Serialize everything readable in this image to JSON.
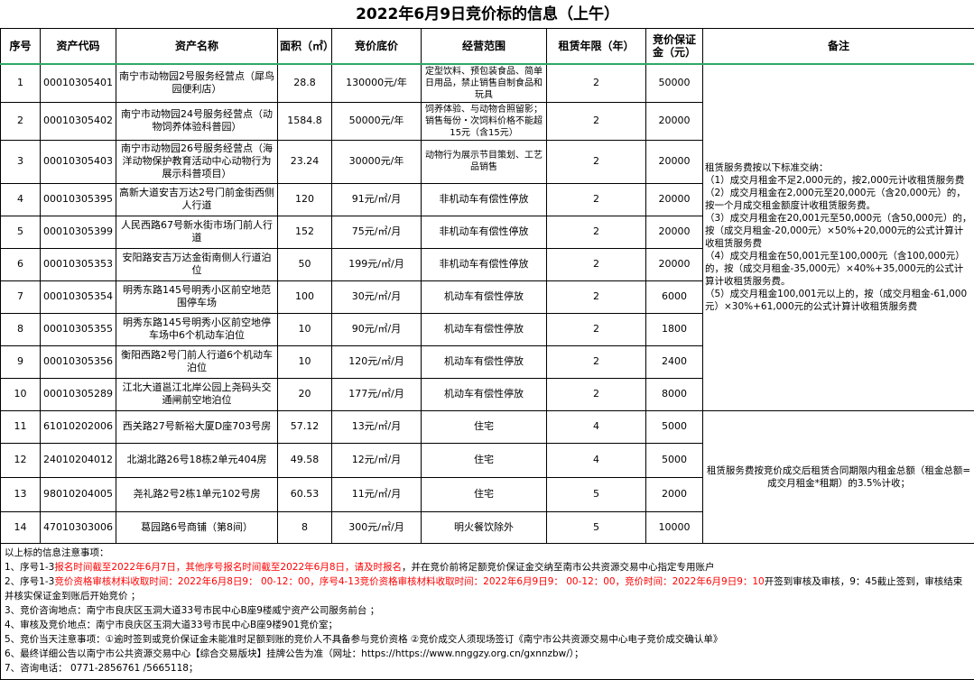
{
  "title": "2022年6月9日竞价标的信息（上午）",
  "headers": [
    "序号",
    "资产代码",
    "资产名称",
    "面积（㎡）",
    "竞价底价",
    "经营范围",
    "租赁年限（年）",
    "竞价保证金（元）",
    "备注"
  ],
  "rows": [
    {
      "no": "1",
      "code": "00010305401",
      "name": "南宁市动物园2号服务经营点（犀鸟园便利店）",
      "area": "28.8",
      "price": "130000元/年",
      "scope": "定型饮料、预包装食品、简单日用品，禁止销售自制食品和玩具",
      "years": "2",
      "deposit": "50000"
    },
    {
      "no": "2",
      "code": "00010305402",
      "name": "南宁市动物园24号服务经营点（动物饲养体验科普园）",
      "area": "1584.8",
      "price": "50000元/年",
      "scope": "饲养体验、与动物合照留影；销售每份・次饲料价格不能超15元（含15元）",
      "years": "2",
      "deposit": "20000"
    },
    {
      "no": "3",
      "code": "00010305403",
      "name": "南宁市动物园26号服务经营点（海洋动物保护教育活动中心动物行为展示科普项目）",
      "area": "23.24",
      "price": "30000元/年",
      "scope": "动物行为展示节目策划、工艺品销售",
      "years": "2",
      "deposit": "20000"
    },
    {
      "no": "4",
      "code": "00010305395",
      "name": "高新大道安吉万达2号门前金街西侧人行道",
      "area": "120",
      "price": "91元/㎡/月",
      "scope": "非机动车有偿性停放",
      "years": "2",
      "deposit": "20000"
    },
    {
      "no": "5",
      "code": "00010305399",
      "name": "人民西路67号新水街市场门前人行道",
      "area": "152",
      "price": "75元/㎡/月",
      "scope": "非机动车有偿性停放",
      "years": "2",
      "deposit": "20000"
    },
    {
      "no": "6",
      "code": "00010305353",
      "name": "安阳路安吉万达金街南侧人行道泊位",
      "area": "50",
      "price": "199元/㎡/月",
      "scope": "非机动车有偿性停放",
      "years": "2",
      "deposit": "20000"
    },
    {
      "no": "7",
      "code": "00010305354",
      "name": "明秀东路145号明秀小区前空地范围停车场",
      "area": "100",
      "price": "30元/㎡/月",
      "scope": "机动车有偿性停放",
      "years": "2",
      "deposit": "6000"
    },
    {
      "no": "8",
      "code": "00010305355",
      "name": "明秀东路145号明秀小区前空地停车场中6个机动车泊位",
      "area": "10",
      "price": "90元/㎡/月",
      "scope": "机动车有偿性停放",
      "years": "2",
      "deposit": "1800"
    },
    {
      "no": "9",
      "code": "00010305356",
      "name": "衡阳西路2号门前人行道6个机动车泊位",
      "area": "10",
      "price": "120元/㎡/月",
      "scope": "机动车有偿性停放",
      "years": "2",
      "deposit": "2400"
    },
    {
      "no": "10",
      "code": "00010305289",
      "name": "江北大道邕江北岸公园上尧码头交通闸前空地泊位",
      "area": "20",
      "price": "177元/㎡/月",
      "scope": "机动车有偿性停放",
      "years": "2",
      "deposit": "8000"
    },
    {
      "no": "11",
      "code": "61010202006",
      "name": "西关路27号新裕大厦D座703号房",
      "area": "57.12",
      "price": "13元/㎡/月",
      "scope": "住宅",
      "years": "4",
      "deposit": "5000"
    },
    {
      "no": "12",
      "code": "24010204012",
      "name": "北湖北路26号18栋2单元404房",
      "area": "49.58",
      "price": "12元/㎡/月",
      "scope": "住宅",
      "years": "4",
      "deposit": "5000"
    },
    {
      "no": "13",
      "code": "98010204005",
      "name": "尧礼路2号2栋1单元102号房",
      "area": "60.53",
      "price": "11元/㎡/月",
      "scope": "住宅",
      "years": "5",
      "deposit": "2000"
    },
    {
      "no": "14",
      "code": "47010303006",
      "name": "葛园路6号商铺（第8间）",
      "area": "8",
      "price": "300元/㎡/月",
      "scope": "明火餐饮除外",
      "years": "5",
      "deposit": "10000"
    }
  ],
  "remarks": {
    "group1": [
      "租赁服务费按以下标准交纳：",
      "（1）成交月租金不足2,000元的，按2,000元计收租赁服务费",
      "（2）成交月租金在2,000元至20,000元（含20,000元）的，按一个月成交租金额度计收租赁服务费。",
      "（3）成交月租金在20,001元至50,000元（含50,000元）的，按（成交月租金-20,000元）×50%+20,000元的公式计算计收租赁服务费",
      "（4）成交月租金在50,001元至100,000元（含100,000元）的，按（成交月租金-35,000元）×40%+35,000元的公式计算计收租赁服务费。",
      "（5）成交月租金100,001元以上的，按（成交月租金-61,000元）×30%+61,000元的公式计算计收租赁服务费"
    ],
    "group2": "租赁服务费按竞价成交后租赁合同期限内租金总额（租金总额=成交月租金*租期）的3.5%计收；"
  },
  "notes": {
    "heading": "以上标的信息注意事项：",
    "n1": {
      "a": "1、序号1-3",
      "b": "报名时间截至2022年6月7日，其他序号报名时间截至2022年6月8日，请及时报名",
      "c": "，并在竞价前将足额竞价保证金交纳至南市公共资源交易中心指定专用账户"
    },
    "n2": {
      "a": "2、序号1-3",
      "b": "竞价资格审核材料收取时间：2022年6月8日9： 00-12：00，序号4-13竞价资格审核材料收取时间：2022年6月9日9： 00-12：00，竞价时间：2022年6月9日9：10",
      "c": "开签到审核及审核，9：45截止签到，审核结束并核实保证金到账后开始竞价 ；"
    },
    "n3": "3、竞价咨询地点：南宁市良庆区玉洞大道33号市民中心B座9楼威宁资产公司服务前台 ；",
    "n4": "4、审核及竞价地点：南宁市良庆区玉洞大道33号市民中心B座9楼901竞价室；",
    "n5": "5、竞价当天注意事项：①逾时签到或竞价保证金未能准时足额到账的竞价人不具备参与竞价资格 ②竞价成交人须现场签订《南宁市公共资源交易中心电子竞价成交确认单》",
    "n6": "6、最终详细公告以南宁市公共资源交易中心【综合交易版块】挂牌公告为准（网址：https://https://www.nnggzy.org.cn/gxnnzbw/）；",
    "n7": "7、咨询电话： 0771-2856761 /5665118；"
  },
  "colors": {
    "highlight": "#ff0000",
    "header_line": "#2fa866"
  }
}
